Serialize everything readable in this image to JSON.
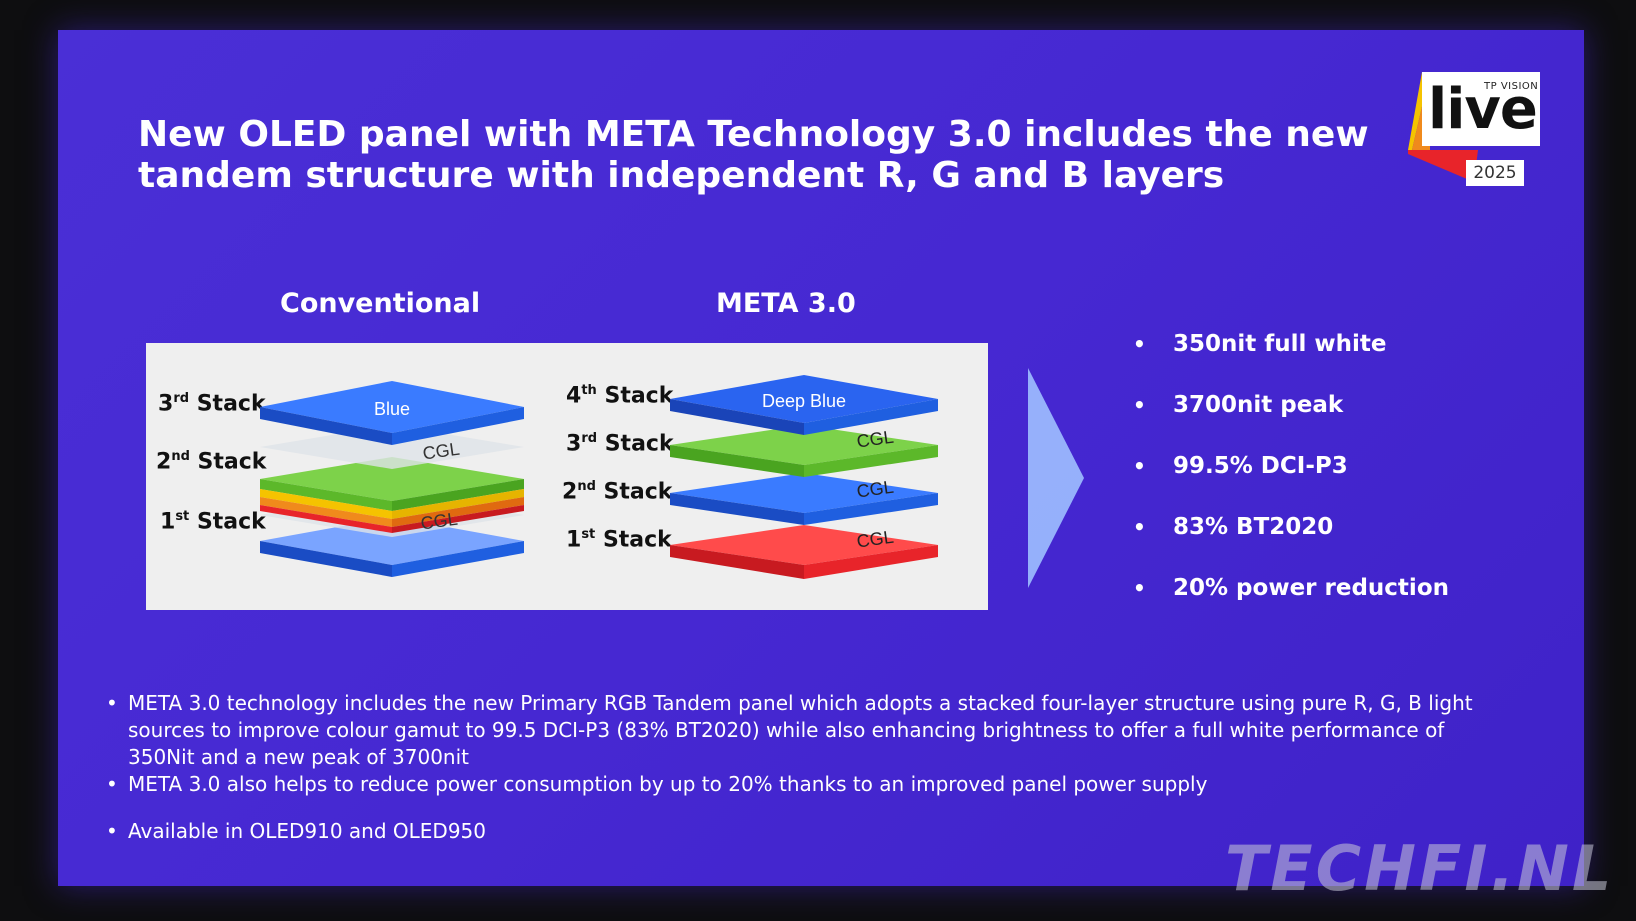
{
  "slide": {
    "title": "New OLED panel with META Technology 3.0 includes the new tandem structure with independent R, G and B layers",
    "logo": {
      "brand": "TP VISION",
      "name": "live",
      "year": "2025"
    }
  },
  "diagram": {
    "conventional": {
      "heading": "Conventional",
      "stacks": [
        {
          "num": "3",
          "sup": "rd",
          "word": "Stack",
          "layer": "Blue"
        },
        {
          "num": "2",
          "sup": "nd",
          "word": "Stack",
          "layer": ""
        },
        {
          "num": "1",
          "sup": "st",
          "word": "Stack",
          "layer": ""
        }
      ],
      "cgl": [
        "CGL",
        "CGL"
      ]
    },
    "meta": {
      "heading": "META 3.0",
      "stacks": [
        {
          "num": "4",
          "sup": "th",
          "word": "Stack",
          "layer": "Deep Blue"
        },
        {
          "num": "3",
          "sup": "rd",
          "word": "Stack",
          "layer": ""
        },
        {
          "num": "2",
          "sup": "nd",
          "word": "Stack",
          "layer": ""
        },
        {
          "num": "1",
          "sup": "st",
          "word": "Stack",
          "layer": ""
        }
      ],
      "cgl": [
        "CGL",
        "CGL",
        "CGL"
      ]
    }
  },
  "features": [
    "350nit full white",
    "3700nit peak",
    "99.5% DCI-P3",
    "83% BT2020",
    "20% power reduction"
  ],
  "notes": [
    "META 3.0 technology includes the new Primary RGB Tandem panel which adopts a stacked four-layer structure using pure R, G, B light sources to improve colour gamut to 99.5 DCI-P3 (83% BT2020) while also enhancing brightness to offer a full white performance of 350Nit and a new peak of 3700nit",
    "META 3.0 also helps to reduce power consumption by up to 20% thanks to an improved panel power supply",
    "Available in OLED910 and OLED950"
  ],
  "watermark": "TECHFI.NL",
  "colors": {
    "background": "#4628d2",
    "blue": "#1f5fe0",
    "green": "#5cb82a",
    "red": "#e8242a",
    "orange": "#f08a1c",
    "yellow": "#f5c300"
  }
}
